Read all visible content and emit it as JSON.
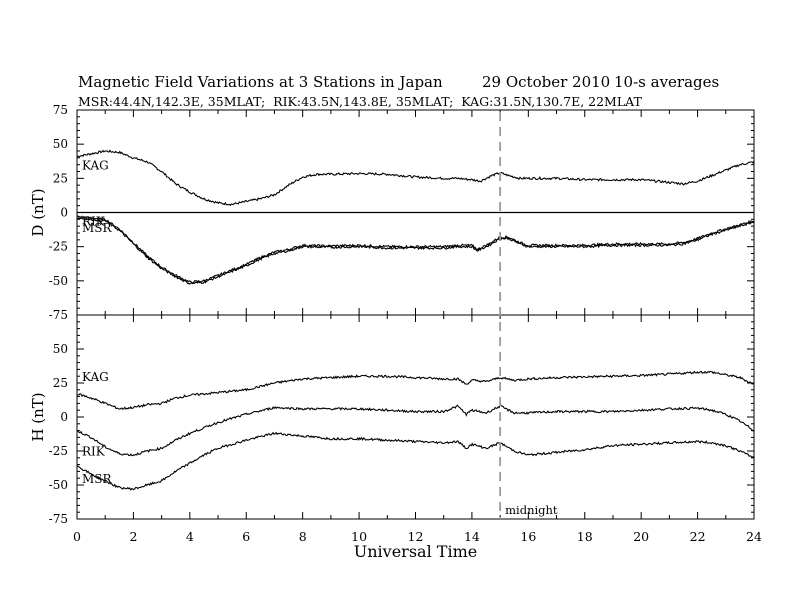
{
  "header": {
    "title": "Magnetic Field Variations at 3 Stations in Japan",
    "date": "29 October 2010",
    "averaging": "10-s averages",
    "stations": "MSR:44.4N,142.3E, 35MLAT;  RIK:43.5N,143.8E, 35MLAT;  KAG:31.5N,130.7E, 22MLAT"
  },
  "chart_data": [
    {
      "type": "line",
      "panel": "top",
      "ylabel": "D (nT)",
      "ylim": [
        -75,
        75
      ],
      "yticks": [
        75,
        50,
        25,
        0,
        -25,
        -50,
        -75
      ],
      "xlim": [
        0,
        24
      ],
      "zero_line": true,
      "series": [
        {
          "name": "KAG",
          "x": [
            0,
            0.5,
            1,
            1.5,
            2,
            2.5,
            3,
            3.5,
            4,
            4.5,
            5,
            5.5,
            6,
            6.5,
            7,
            7.5,
            8,
            8.5,
            9,
            10,
            11,
            12,
            13,
            13.5,
            14,
            14.3,
            14.7,
            15,
            15.3,
            15.7,
            16,
            17,
            18,
            19,
            20,
            20.5,
            21,
            21.5,
            22,
            22.5,
            23,
            23.5,
            24
          ],
          "y": [
            41,
            43,
            45,
            44,
            40,
            37,
            30,
            21,
            15,
            10,
            7,
            6,
            8,
            10,
            13,
            20,
            26,
            28,
            28,
            28.5,
            28,
            26,
            25,
            25,
            24,
            23,
            27,
            29,
            27,
            25,
            25,
            25,
            24,
            24,
            24,
            23,
            22,
            21,
            23,
            27,
            31,
            35,
            37
          ]
        },
        {
          "name": "RIK",
          "x": [
            0,
            0.5,
            1,
            1.5,
            2,
            2.5,
            3,
            3.5,
            4,
            4.5,
            5,
            5.5,
            6,
            6.5,
            7,
            7.5,
            8,
            9,
            10,
            11,
            12,
            13,
            13.5,
            14,
            14.2,
            14.6,
            15,
            15.3,
            15.7,
            16,
            17,
            18,
            19,
            20,
            21,
            21.5,
            22,
            22.5,
            23,
            23.5,
            24
          ],
          "y": [
            -3,
            -4,
            -5,
            -12,
            -22,
            -32,
            -40,
            -46,
            -51,
            -50,
            -46,
            -42,
            -38,
            -33,
            -29,
            -27,
            -24,
            -24.5,
            -24,
            -25,
            -25,
            -25,
            -24,
            -24,
            -27,
            -23,
            -18,
            -18,
            -22,
            -24,
            -24,
            -24,
            -23,
            -23,
            -23,
            -22,
            -19,
            -15,
            -12,
            -9,
            -6
          ]
        },
        {
          "name": "MSR",
          "x": [
            0,
            0.5,
            1,
            1.5,
            2,
            2.5,
            3,
            3.5,
            4,
            4.5,
            5,
            5.5,
            6,
            6.5,
            7,
            7.5,
            8,
            9,
            10,
            11,
            12,
            13,
            13.5,
            14,
            14.2,
            14.6,
            15,
            15.3,
            15.7,
            16,
            17,
            18,
            19,
            20,
            21,
            21.5,
            22,
            22.5,
            23,
            23.5,
            24
          ],
          "y": [
            -4,
            -5,
            -6,
            -13,
            -23,
            -33,
            -41,
            -47,
            -52,
            -51,
            -47,
            -43,
            -39,
            -34,
            -30,
            -28,
            -25,
            -25.5,
            -25,
            -26,
            -26,
            -26,
            -25,
            -25,
            -28,
            -24,
            -19,
            -19,
            -23,
            -25,
            -25,
            -25,
            -24,
            -24,
            -24,
            -23,
            -20,
            -16,
            -13,
            -10,
            -7
          ]
        }
      ]
    },
    {
      "type": "line",
      "panel": "bottom",
      "ylabel": "H (nT)",
      "ylim": [
        -75,
        75
      ],
      "yticks": [
        50,
        25,
        0,
        -25,
        -50,
        -75
      ],
      "xlim": [
        0,
        24
      ],
      "xticks": [
        0,
        2,
        4,
        6,
        8,
        10,
        12,
        14,
        16,
        18,
        20,
        22,
        24
      ],
      "xlabel": "Universal Time",
      "series": [
        {
          "name": "KAG",
          "x": [
            0,
            0.5,
            1,
            1.5,
            2,
            2.5,
            3,
            3.5,
            4,
            5,
            6,
            7,
            8,
            9,
            10,
            11,
            12,
            13,
            13.5,
            13.8,
            14,
            14.5,
            15,
            15.5,
            16,
            17,
            18,
            19,
            20,
            21,
            22,
            22.5,
            23,
            23.5,
            24
          ],
          "y": [
            17,
            14,
            10,
            6,
            7,
            9,
            10,
            14,
            16,
            18,
            20,
            25,
            28,
            29,
            30,
            30,
            29,
            28,
            28,
            24,
            27,
            26,
            29,
            27,
            28,
            29,
            29.5,
            30,
            30.5,
            31.5,
            33,
            33,
            31,
            29,
            24
          ]
        },
        {
          "name": "RIK",
          "x": [
            0,
            0.5,
            1,
            1.5,
            2,
            2.5,
            3,
            3.5,
            4,
            4.5,
            5,
            6,
            7,
            8,
            9,
            10,
            11,
            12,
            13,
            13.5,
            13.8,
            14,
            14.5,
            15,
            15.5,
            16,
            17,
            18,
            19,
            20,
            21,
            22,
            22.5,
            23,
            23.5,
            24
          ],
          "y": [
            -10,
            -15,
            -22,
            -27,
            -28,
            -25,
            -23,
            -17,
            -12,
            -8,
            -4,
            2,
            7,
            6,
            6,
            6,
            5,
            4,
            4,
            8,
            2,
            5,
            3,
            8,
            3,
            3,
            4,
            4,
            4,
            5,
            6,
            6.5,
            5,
            2,
            -3,
            -10
          ]
        },
        {
          "name": "MSR",
          "x": [
            0,
            0.5,
            1,
            1.5,
            2,
            2.5,
            3,
            3.5,
            4,
            4.5,
            5,
            6,
            7,
            8,
            9,
            10,
            11,
            12,
            13,
            13.5,
            13.8,
            14,
            14.5,
            15,
            15.5,
            16,
            17,
            18,
            19,
            20,
            21,
            22,
            22.5,
            23,
            23.5,
            24
          ],
          "y": [
            -36,
            -42,
            -47,
            -52,
            -53,
            -50,
            -47,
            -40,
            -34,
            -28,
            -23,
            -17,
            -12,
            -14,
            -16,
            -16,
            -17,
            -18,
            -19,
            -18,
            -23,
            -20,
            -23,
            -19,
            -25,
            -28,
            -26,
            -24,
            -21,
            -20,
            -19,
            -18,
            -19,
            -21,
            -25,
            -30
          ]
        }
      ],
      "annotations": [
        {
          "text": "midnight",
          "x": 15
        }
      ]
    }
  ],
  "colors": {
    "line": "#000000",
    "dashed": "#999999"
  }
}
